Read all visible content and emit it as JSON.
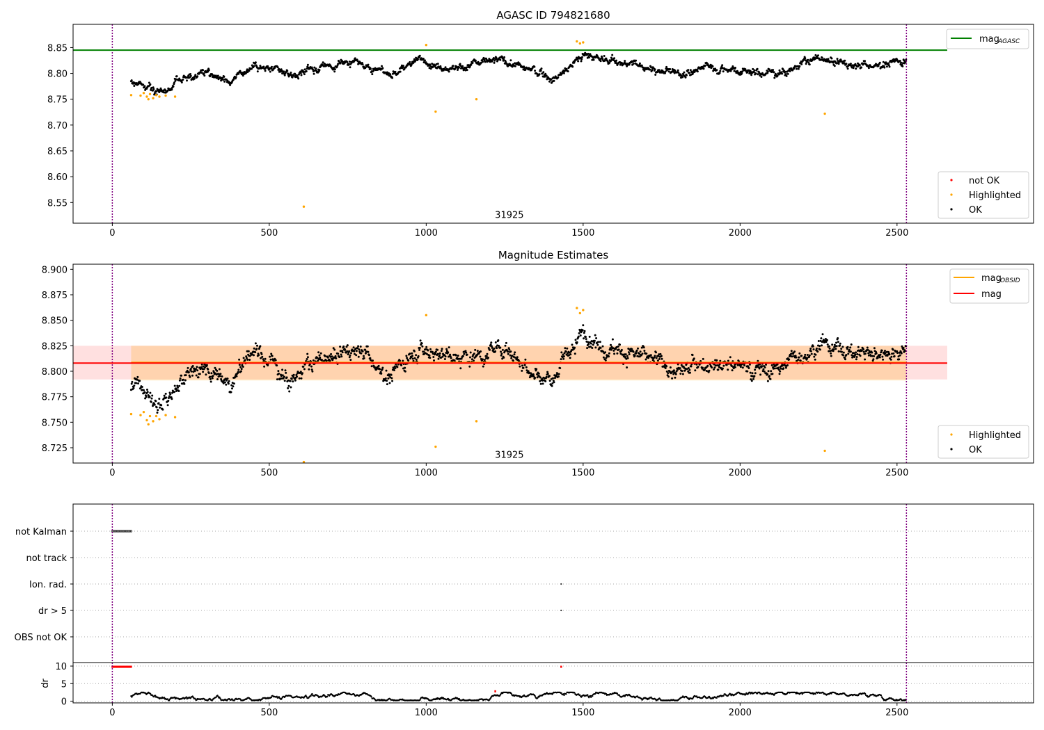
{
  "chart_data": [
    {
      "type": "scatter",
      "title": "AGASC ID 794821680",
      "xlim": [
        -125,
        2935
      ],
      "ylim": [
        8.51,
        8.895
      ],
      "x_ticks": [
        0,
        500,
        1000,
        1500,
        2000,
        2500
      ],
      "y_ticks": [
        8.55,
        8.6,
        8.65,
        8.7,
        8.75,
        8.8,
        8.85
      ],
      "annotation": {
        "text": "31925",
        "x": 1265,
        "y": 8.52
      },
      "vlines": [
        0,
        2530
      ],
      "hline": {
        "name": "mag_AGASC",
        "value": 8.845,
        "x_range": [
          -125,
          2660
        ],
        "color": "#008000"
      },
      "legend_line": {
        "label": "mag",
        "sub": "AGASC",
        "color": "#008000"
      },
      "legend_points": [
        {
          "label": "not OK",
          "color": "#ff0000"
        },
        {
          "label": "Highlighted",
          "color": "#ffa500"
        },
        {
          "label": "OK",
          "color": "#000000"
        }
      ],
      "highlighted_points": [
        [
          60,
          8.758
        ],
        [
          90,
          8.757
        ],
        [
          100,
          8.762
        ],
        [
          110,
          8.755
        ],
        [
          115,
          8.75
        ],
        [
          120,
          8.76
        ],
        [
          130,
          8.752
        ],
        [
          140,
          8.758
        ],
        [
          150,
          8.755
        ],
        [
          170,
          8.757
        ],
        [
          200,
          8.755
        ],
        [
          610,
          8.542
        ],
        [
          1000,
          8.855
        ],
        [
          1030,
          8.726
        ],
        [
          1160,
          8.75
        ],
        [
          1480,
          8.862
        ],
        [
          1490,
          8.858
        ],
        [
          1500,
          8.86
        ],
        [
          2270,
          8.722
        ]
      ],
      "ok_trend": [
        [
          60,
          8.785
        ],
        [
          150,
          8.768
        ],
        [
          230,
          8.79
        ],
        [
          300,
          8.805
        ],
        [
          380,
          8.79
        ],
        [
          460,
          8.82
        ],
        [
          560,
          8.795
        ],
        [
          680,
          8.812
        ],
        [
          780,
          8.825
        ],
        [
          880,
          8.795
        ],
        [
          980,
          8.825
        ],
        [
          1100,
          8.812
        ],
        [
          1250,
          8.825
        ],
        [
          1400,
          8.79
        ],
        [
          1500,
          8.835
        ],
        [
          1700,
          8.812
        ],
        [
          1800,
          8.798
        ],
        [
          1900,
          8.812
        ],
        [
          2000,
          8.808
        ],
        [
          2100,
          8.8
        ],
        [
          2250,
          8.828
        ],
        [
          2400,
          8.815
        ],
        [
          2530,
          8.825
        ]
      ]
    },
    {
      "type": "scatter",
      "title": "Magnitude Estimates",
      "xlim": [
        -125,
        2935
      ],
      "ylim": [
        8.71,
        8.905
      ],
      "x_ticks": [
        0,
        500,
        1000,
        1500,
        2000,
        2500
      ],
      "y_ticks": [
        8.725,
        8.75,
        8.775,
        8.8,
        8.825,
        8.85,
        8.875,
        8.9
      ],
      "annotation": {
        "text": "31925",
        "x": 1265,
        "y": 8.715
      },
      "vlines": [
        0,
        2530
      ],
      "mag": {
        "value": 8.808,
        "color": "#ff0000",
        "band": [
          8.792,
          8.825
        ],
        "x_range": [
          -125,
          2660
        ]
      },
      "mag_obsid": {
        "value": 8.808,
        "color": "#ffa500",
        "band": [
          8.791,
          8.825
        ],
        "x_range": [
          60,
          2530
        ]
      },
      "legend_lines": [
        {
          "label": "mag",
          "sub": "OBSID",
          "color": "#ffa500"
        },
        {
          "label": "mag",
          "sub": "",
          "color": "#ff0000"
        }
      ],
      "legend_points": [
        {
          "label": "Highlighted",
          "color": "#ffa500"
        },
        {
          "label": "OK",
          "color": "#000000"
        }
      ],
      "highlighted_points": [
        [
          60,
          8.758
        ],
        [
          90,
          8.757
        ],
        [
          100,
          8.76
        ],
        [
          110,
          8.752
        ],
        [
          115,
          8.748
        ],
        [
          120,
          8.756
        ],
        [
          130,
          8.751
        ],
        [
          140,
          8.756
        ],
        [
          150,
          8.753
        ],
        [
          170,
          8.757
        ],
        [
          200,
          8.755
        ],
        [
          610,
          8.711
        ],
        [
          1000,
          8.855
        ],
        [
          1030,
          8.726
        ],
        [
          1160,
          8.751
        ],
        [
          1480,
          8.862
        ],
        [
          1490,
          8.857
        ],
        [
          1500,
          8.86
        ],
        [
          2270,
          8.722
        ]
      ],
      "ok_trend": [
        [
          60,
          8.785
        ],
        [
          150,
          8.768
        ],
        [
          230,
          8.79
        ],
        [
          300,
          8.805
        ],
        [
          380,
          8.79
        ],
        [
          460,
          8.82
        ],
        [
          560,
          8.795
        ],
        [
          680,
          8.812
        ],
        [
          780,
          8.825
        ],
        [
          880,
          8.795
        ],
        [
          980,
          8.825
        ],
        [
          1100,
          8.812
        ],
        [
          1250,
          8.825
        ],
        [
          1400,
          8.79
        ],
        [
          1500,
          8.835
        ],
        [
          1700,
          8.812
        ],
        [
          1800,
          8.798
        ],
        [
          1900,
          8.812
        ],
        [
          2000,
          8.808
        ],
        [
          2100,
          8.8
        ],
        [
          2250,
          8.828
        ],
        [
          2400,
          8.815
        ],
        [
          2530,
          8.825
        ]
      ]
    },
    {
      "type": "scatter",
      "title": "",
      "xlim": [
        -125,
        2935
      ],
      "x_ticks": [
        0,
        500,
        1000,
        1500,
        2000,
        2500
      ],
      "vlines": [
        0,
        2530
      ],
      "flag_categories": [
        "not Kalman",
        "not track",
        "Ion. rad.",
        "dr > 5",
        "OBS not OK"
      ],
      "flags": [
        {
          "category": "not Kalman",
          "x_range": [
            0,
            60
          ]
        },
        {
          "category": "Ion. rad.",
          "x_points": [
            1430
          ]
        },
        {
          "category": "dr > 5",
          "x_points": [
            1430
          ]
        }
      ],
      "dr_panel": {
        "ylabel": "dr",
        "ylim": [
          -0.5,
          11
        ],
        "y_ticks": [
          0,
          5,
          10
        ],
        "red_points_x_range": [
          0,
          60
        ],
        "red_points_value": 9.8,
        "red_point_extra": [
          [
            1430,
            9.8
          ],
          [
            1220,
            2.8
          ]
        ],
        "ok_level": [
          0.2,
          2.5
        ]
      }
    }
  ]
}
